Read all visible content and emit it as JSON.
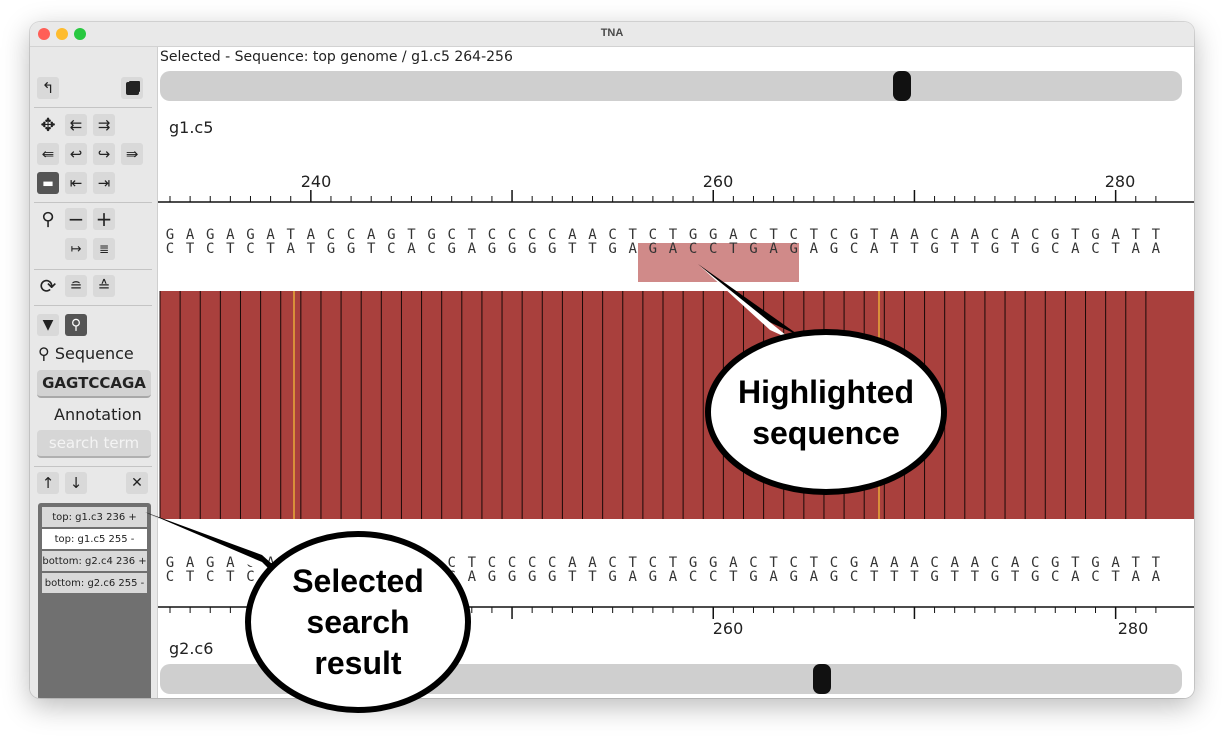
{
  "window": {
    "title": "TNA"
  },
  "toolbar": {
    "icons": [
      "undo-icon",
      "copy-icon",
      "move-icon",
      "shift-left-icon",
      "shift-right-icon",
      "jump-left-icon",
      "back-icon",
      "forward-icon",
      "jump-right-icon",
      "ruler-icon",
      "align-left-icon",
      "align-right-icon",
      "zoom-icon",
      "minus-icon",
      "plus-icon",
      "fit-width-icon",
      "wrap-text-icon",
      "refresh-icon",
      "collapse-icon",
      "expand-icon",
      "filter-icon",
      "search-icon",
      "up-arrow-icon",
      "down-arrow-icon",
      "close-icon"
    ]
  },
  "search": {
    "sequence_label": "Sequence",
    "sequence_value": "GAGTCCAGA",
    "annotation_label": "Annotation",
    "annotation_placeholder": "search term",
    "results": [
      "top: g1.c3 236 +",
      "top: g1.c5 255 -",
      "bottom: g2.c4 236 +",
      "bottom: g2.c6 255 -"
    ],
    "selected_result_index": 1
  },
  "main": {
    "selected_text": "Selected - Sequence: top genome / g1.c5 264-256",
    "top_scroll_fraction": 0.73,
    "bottom_scroll_fraction": 0.65,
    "top": {
      "name": "g1.c5",
      "ticks": [
        "240",
        "260",
        "280"
      ],
      "row1": "GAGAGATACCAGTGCTCCCCAACTCTGGACTCTCGTAACAACACGTGATT",
      "row2": "CTCTCTATGGTCACGAGGGGTTGAGACCTGAGAGCATTGTTGTGCACTAA"
    },
    "bottom": {
      "name": "g2.c6",
      "ticks": [
        "260",
        "280"
      ],
      "row1": "GAGAGATACCAGTGCTCCCCAACTCTGGACTCTCGAAACAACACGTGATT",
      "row2": "CTCTCTATGGTCACGAGGGGTTGAGACCTGAGAGCTTTGTTGTGCACTAA"
    },
    "alignment_color": "#a9403d",
    "highlight_color": "#d08a89"
  },
  "annotations": {
    "highlight_lines": [
      "Highlighted",
      "sequence"
    ],
    "result_lines": [
      "Selected",
      "search",
      "result"
    ]
  }
}
